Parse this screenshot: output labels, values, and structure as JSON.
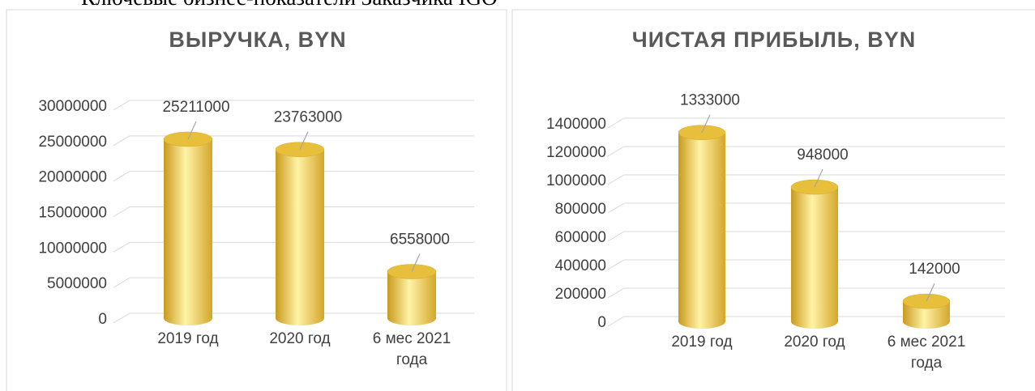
{
  "heading": "Ключевые бизнес-показатели Заказчика IGO",
  "chart_data": [
    {
      "type": "bar",
      "title": "ВЫРУЧКА, BYN",
      "categories": [
        "2019 год",
        "2020 год",
        "6 мес 2021 года"
      ],
      "values": [
        25211000,
        23763000,
        6558000
      ],
      "color": "#e8bf3a",
      "ylim": [
        0,
        30000000
      ],
      "yticks": [
        0,
        5000000,
        10000000,
        15000000,
        20000000,
        25000000,
        30000000
      ],
      "grid": true
    },
    {
      "type": "bar",
      "title": "ЧИСТАЯ ПРИБЫЛЬ, BYN",
      "categories": [
        "2019 год",
        "2020 год",
        "6 мес 2021 года"
      ],
      "values": [
        1333000,
        948000,
        142000
      ],
      "color": "#e8bf3a",
      "ylim": [
        0,
        1400000
      ],
      "yticks": [
        0,
        200000,
        400000,
        600000,
        800000,
        1000000,
        1200000,
        1400000
      ],
      "grid": true
    }
  ]
}
